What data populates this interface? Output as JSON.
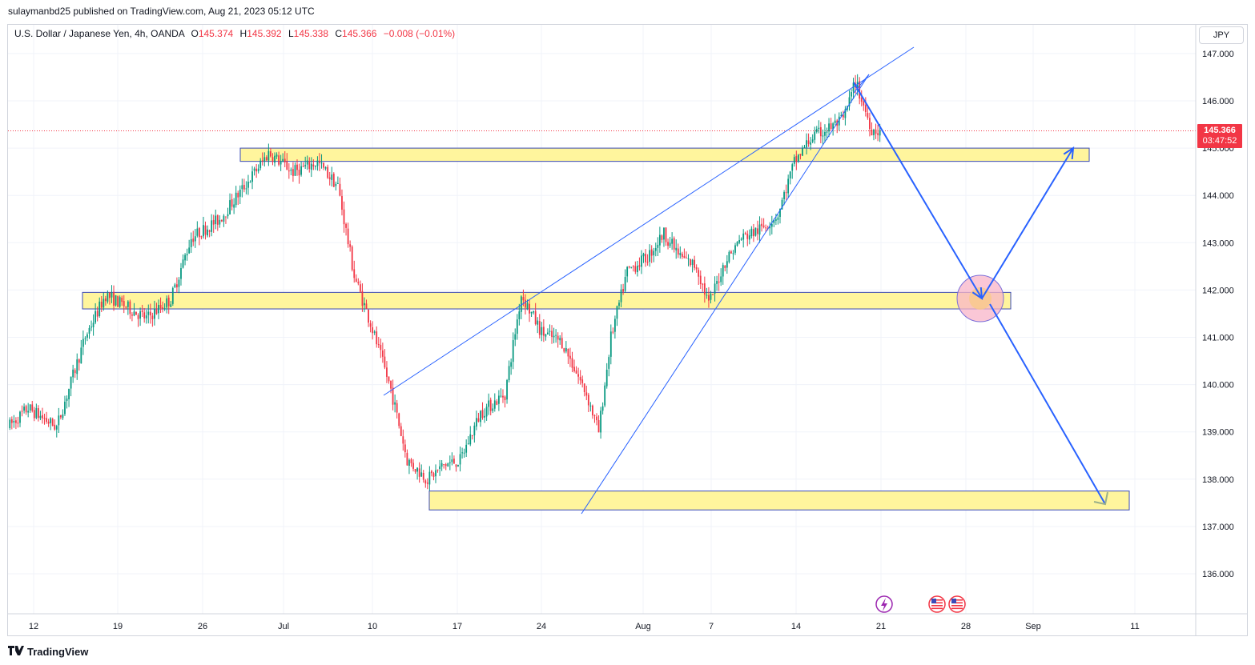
{
  "header": {
    "publisher_line": "sulaymanbd25 published on TradingView.com, Aug 21, 2023 05:12 UTC"
  },
  "legend": {
    "symbol": "U.S. Dollar / Japanese Yen, 4h, OANDA",
    "open_label": "O",
    "open": "145.374",
    "high_label": "H",
    "high": "145.392",
    "low_label": "L",
    "low": "145.338",
    "close_label": "C",
    "close": "145.366",
    "change": "−0.008 (−0.01%)"
  },
  "currency": "JPY",
  "last_price": {
    "price": "145.366",
    "countdown": "03:47:52"
  },
  "footer": {
    "brand": "TradingView"
  },
  "colors": {
    "up": "#089981",
    "down": "#f23645",
    "zone_fill": "#fff59d",
    "zone_border": "#3a4ab8",
    "projection": "#2962ff",
    "trendline": "#2962ff",
    "target_circle": "#f8b4c8"
  },
  "chart_data": {
    "type": "candlestick",
    "interval": "4h",
    "symbol": "USDJPY",
    "ylim": [
      135.3,
      147.1
    ],
    "y_ticks": [
      "147.000",
      "146.000",
      "145.000",
      "144.000",
      "143.000",
      "142.000",
      "141.000",
      "140.000",
      "139.000",
      "138.000",
      "137.000",
      "136.000"
    ],
    "x_ticks": [
      "12",
      "19",
      "26",
      "Jul",
      "10",
      "17",
      "24",
      "Aug",
      "7",
      "14",
      "21",
      "28",
      "Sep",
      "11"
    ],
    "anchor_path": [
      [
        0,
        139.1
      ],
      [
        10,
        139.5
      ],
      [
        24,
        139.1
      ],
      [
        38,
        141.0
      ],
      [
        48,
        141.9
      ],
      [
        60,
        141.6
      ],
      [
        68,
        141.4
      ],
      [
        80,
        141.8
      ],
      [
        90,
        143.1
      ],
      [
        104,
        143.5
      ],
      [
        118,
        144.3
      ],
      [
        128,
        144.9
      ],
      [
        140,
        144.5
      ],
      [
        152,
        144.7
      ],
      [
        162,
        144.2
      ],
      [
        170,
        142.3
      ],
      [
        178,
        141.3
      ],
      [
        188,
        139.9
      ],
      [
        196,
        138.4
      ],
      [
        206,
        138.0
      ],
      [
        214,
        138.3
      ],
      [
        222,
        138.4
      ],
      [
        232,
        139.4
      ],
      [
        244,
        139.8
      ],
      [
        252,
        141.9
      ],
      [
        262,
        141.1
      ],
      [
        272,
        140.9
      ],
      [
        284,
        139.8
      ],
      [
        290,
        139.0
      ],
      [
        296,
        141.0
      ],
      [
        304,
        142.4
      ],
      [
        314,
        142.7
      ],
      [
        322,
        143.2
      ],
      [
        330,
        142.7
      ],
      [
        338,
        142.5
      ],
      [
        344,
        141.7
      ],
      [
        352,
        142.6
      ],
      [
        360,
        143.1
      ],
      [
        370,
        143.3
      ],
      [
        378,
        143.6
      ],
      [
        386,
        144.7
      ],
      [
        394,
        145.2
      ],
      [
        402,
        145.4
      ],
      [
        410,
        145.6
      ],
      [
        416,
        146.4
      ],
      [
        424,
        145.4
      ],
      [
        428,
        145.366
      ]
    ],
    "zones": [
      {
        "low": 144.72,
        "high": 145.0
      },
      {
        "low": 141.6,
        "high": 141.95
      },
      {
        "low": 137.35,
        "high": 137.75
      }
    ],
    "projection_points": [
      "146.35",
      "141.8",
      "145.0",
      "137.4"
    ]
  }
}
